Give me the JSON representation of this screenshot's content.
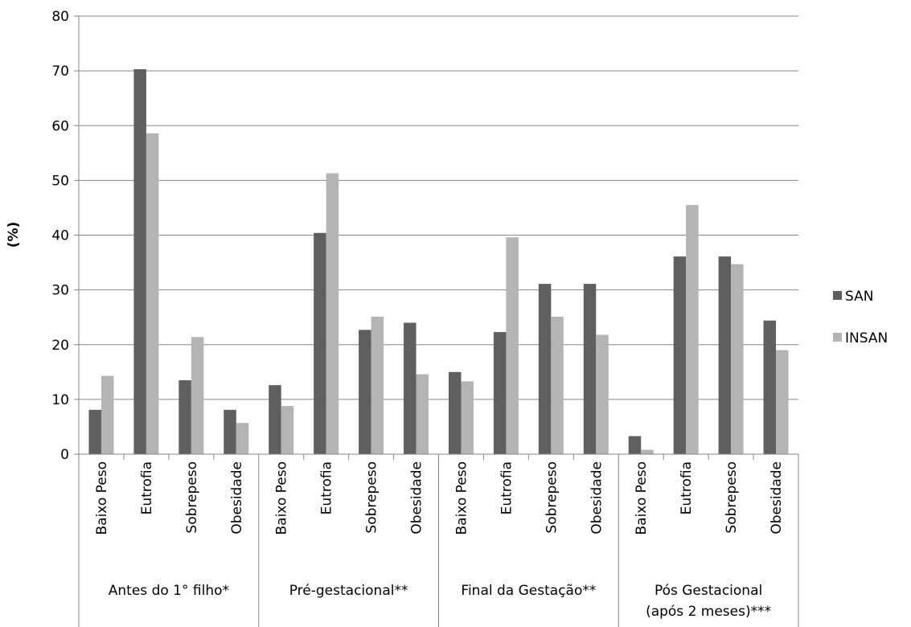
{
  "chart_data": {
    "type": "bar",
    "title": "",
    "xlabel": "",
    "ylabel": "(%)",
    "ylim": [
      0,
      80
    ],
    "yticks": [
      0,
      10,
      20,
      30,
      40,
      50,
      60,
      70,
      80
    ],
    "grid": true,
    "legend_position": "right",
    "groups": [
      {
        "label": "Antes do 1° filho*",
        "categories": [
          "Baixo Peso",
          "Eutrofia",
          "Sobrepeso",
          "Obesidade"
        ]
      },
      {
        "label": "Pré-gestacional**",
        "categories": [
          "Baixo Peso",
          "Eutrofia",
          "Sobrepeso",
          "Obesidade"
        ]
      },
      {
        "label": "Final da Gestação**",
        "categories": [
          "Baixo Peso",
          "Eutrofia",
          "Sobrepeso",
          "Obesidade"
        ]
      },
      {
        "label": "Pós Gestacional (após 2 meses)***",
        "label_lines": [
          "Pós Gestacional",
          "(após 2 meses)***"
        ],
        "categories": [
          "Baixo Peso",
          "Eutrofia",
          "Sobrepeso",
          "Obesidade"
        ]
      }
    ],
    "series": [
      {
        "name": "SAN",
        "color": "#5f5f5f",
        "values": [
          8.1,
          70.3,
          13.5,
          8.1,
          12.6,
          40.4,
          22.7,
          24.0,
          15.0,
          22.3,
          31.1,
          31.1,
          3.3,
          36.1,
          36.1,
          24.4
        ]
      },
      {
        "name": "INSAN",
        "color": "#b4b4b4",
        "values": [
          14.3,
          58.6,
          21.4,
          5.7,
          8.8,
          51.3,
          25.1,
          14.6,
          13.3,
          39.6,
          25.1,
          21.8,
          0.8,
          45.5,
          34.7,
          19.0
        ]
      }
    ]
  }
}
